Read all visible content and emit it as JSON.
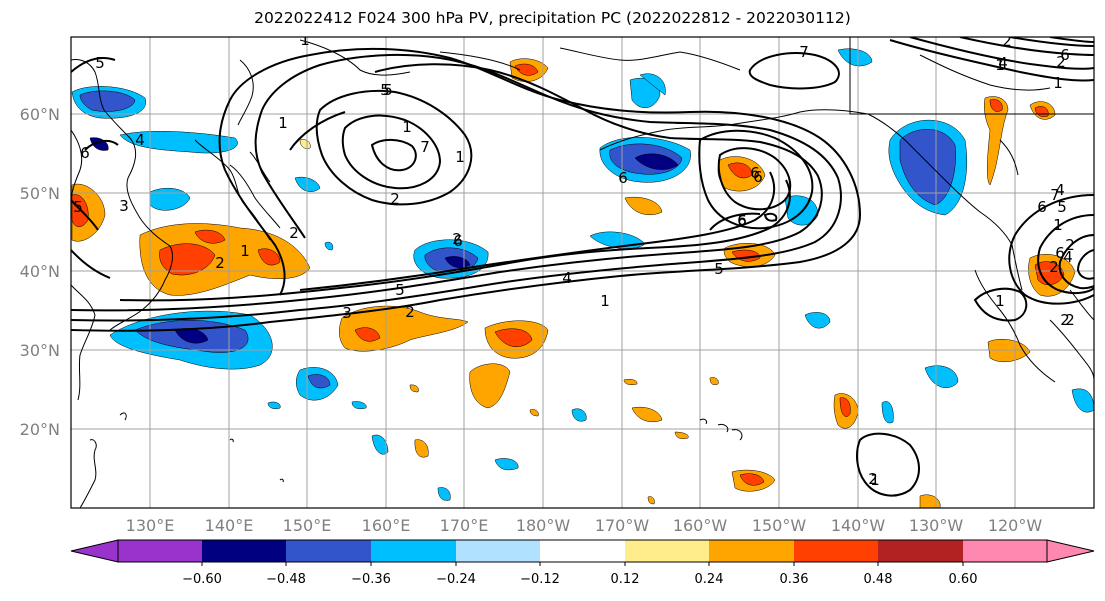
{
  "title": "2022022412 F024 300 hPa PV, precipitation PC (2022022812 - 2022030112)",
  "axes": {
    "lon_labels": [
      "130°E",
      "140°E",
      "150°E",
      "160°E",
      "170°E",
      "180°W",
      "170°W",
      "160°W",
      "150°W",
      "140°W",
      "130°W",
      "120°W"
    ],
    "lat_labels": [
      "60°N",
      "50°N",
      "40°N",
      "30°N",
      "20°N"
    ]
  },
  "colorbar": {
    "colors": [
      "#9933cc",
      "#000080",
      "#3355cc",
      "#00bfff",
      "#b0e2ff",
      "#ffffff",
      "#ffec8b",
      "#ffa500",
      "#ff4000",
      "#b22222",
      "#ff88b0"
    ],
    "tick_labels": [
      "−0.60",
      "−0.48",
      "−0.36",
      "−0.24",
      "−0.12",
      "0.12",
      "0.24",
      "0.36",
      "0.48",
      "0.60"
    ]
  },
  "contour_labels": [
    "1",
    "5",
    "1",
    "5",
    "1",
    "6",
    "5",
    "4",
    "3",
    "2",
    "2",
    "1",
    "7",
    "1",
    "2",
    "6",
    "2",
    "7",
    "6",
    "6",
    "2",
    "4",
    "2",
    "5",
    "3",
    "1",
    "2",
    "4",
    "5",
    "1",
    "5",
    "6",
    "6",
    "6",
    "6",
    "4",
    "1",
    "2",
    "5",
    "6",
    "4",
    "1",
    "2",
    "2",
    "7",
    "6",
    "2",
    "1",
    "2",
    "1"
  ]
}
